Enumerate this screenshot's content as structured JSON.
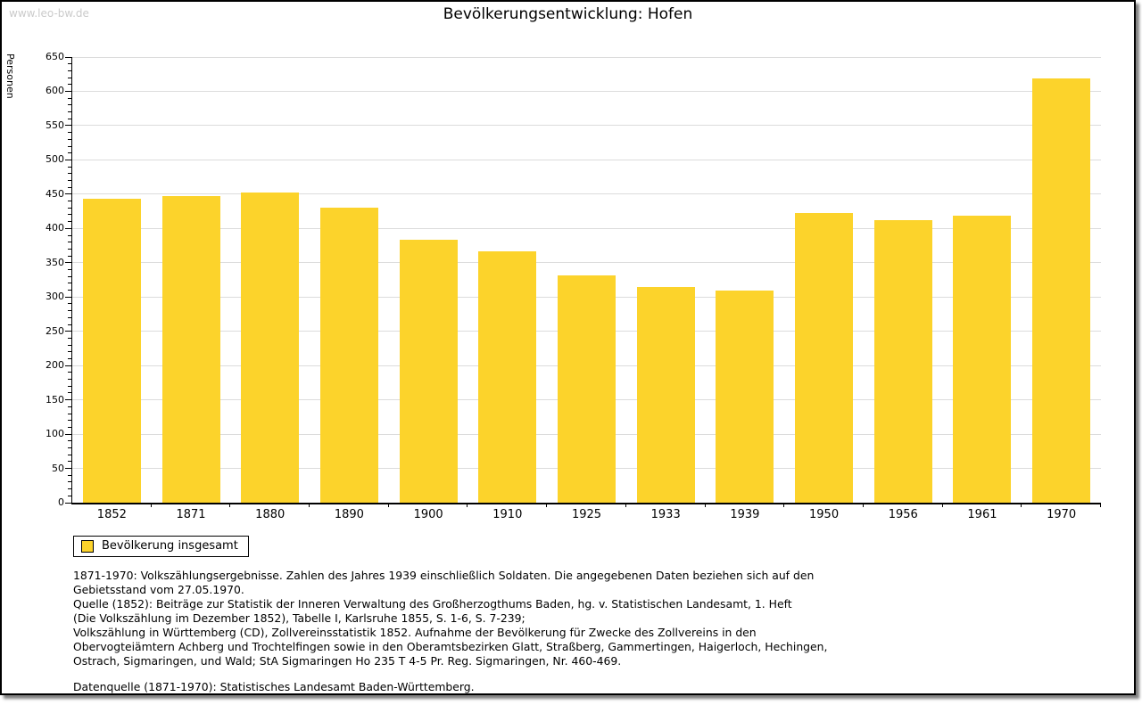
{
  "watermark": "www.leo-bw.de",
  "title": "Bevölkerungsentwicklung: Hofen",
  "chart_data": {
    "type": "bar",
    "title": "Bevölkerungsentwicklung: Hofen",
    "xlabel": "",
    "ylabel": "Personen",
    "categories": [
      "1852",
      "1871",
      "1880",
      "1890",
      "1900",
      "1910",
      "1925",
      "1933",
      "1939",
      "1950",
      "1956",
      "1961",
      "1970"
    ],
    "values": [
      443,
      447,
      452,
      430,
      384,
      366,
      331,
      315,
      309,
      422,
      412,
      419,
      619
    ],
    "series_name": "Bevölkerung insgesamt",
    "ylim": [
      0,
      650
    ],
    "ytick_step": 50,
    "yminor_step": 10,
    "grid": true,
    "legend_position": "bottom-left",
    "bar_color": "#FCD32B"
  },
  "legend": {
    "label": "Bevölkerung insgesamt",
    "swatch_color": "#FCD32B"
  },
  "footnotes": [
    "1871-1970: Volkszählungsergebnisse. Zahlen des Jahres 1939 einschließlich Soldaten. Die angegebenen Daten beziehen sich auf den",
    "Gebietsstand vom 27.05.1970.",
    "Quelle (1852): Beiträge zur Statistik der Inneren Verwaltung des Großherzogthums Baden, hg. v. Statistischen Landesamt, 1. Heft",
    "(Die Volkszählung im Dezember 1852), Tabelle I, Karlsruhe 1855, S. 1-6, S. 7-239;",
    "Volkszählung in Württemberg (CD), Zollvereinsstatistik 1852. Aufnahme der Bevölkerung für Zwecke des Zollvereins in den",
    "Obervogteiämtern Achberg und Trochtelfingen sowie in den Oberamtsbezirken Glatt, Straßberg, Gammertingen, Haigerloch, Hechingen,",
    "Ostrach, Sigmaringen, und Wald; StA Sigmaringen Ho 235 T 4-5 Pr. Reg. Sigmaringen, Nr. 460-469."
  ],
  "datasource": "Datenquelle (1871-1970): Statistisches Landesamt Baden-Württemberg.",
  "colors": {
    "bar": "#FCD32B",
    "gridline": "#dcdcdc",
    "axis": "#000000",
    "watermark": "#cbcbcb",
    "background": "#ffffff"
  }
}
